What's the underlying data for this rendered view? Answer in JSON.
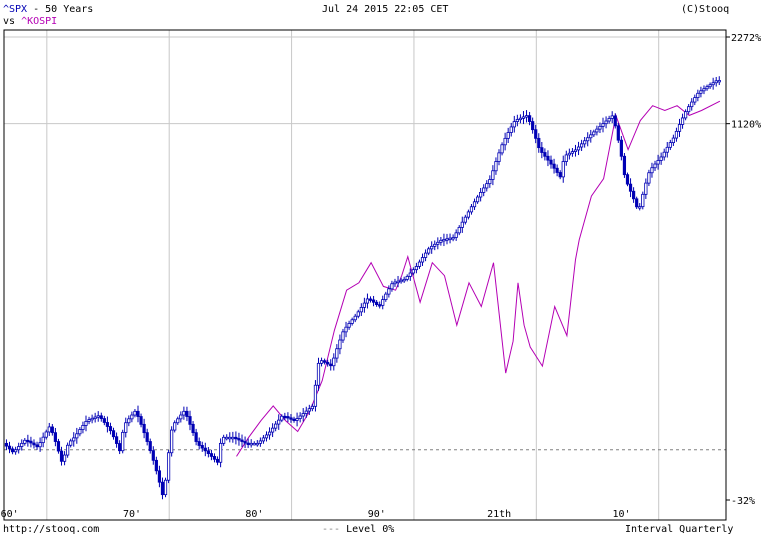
{
  "header": {
    "primary_symbol": "^SPX",
    "primary_suffix": " - 50 Years",
    "vs_label": "vs ",
    "compare_symbol": "^KOSPI",
    "timestamp": "Jul 24 2015 22:05 CET",
    "copyright": "(C)Stooq"
  },
  "footer": {
    "url": "http://stooq.com",
    "level_label": "Level 0%",
    "interval_label": "Interval Quarterly"
  },
  "colors": {
    "primary_series": "#0000b4",
    "compare_series": "#b400b4",
    "grid": "#c8c8c8",
    "frame": "#000000",
    "level_line": "#808080"
  },
  "chart_data": {
    "type": "line",
    "title": "^SPX - 50 Years vs ^KOSPI",
    "scale": "log",
    "x_range": [
      1957,
      2016
    ],
    "y_tick_labels": [
      "2272%",
      "1120%",
      "-32%"
    ],
    "x_tick_labels": [
      "60'",
      "70'",
      "80'",
      "90'",
      "21th",
      "10'"
    ],
    "grid": true,
    "reference_line": {
      "label": "Level 0%",
      "value": 0
    },
    "series": [
      {
        "name": "^SPX",
        "style": "candlestick",
        "x": [
          1957.2,
          1958,
          1959,
          1960,
          1961,
          1962,
          1962.5,
          1963,
          1964,
          1965,
          1966,
          1966.8,
          1967,
          1968,
          1969,
          1970.3,
          1971,
          1972,
          1973,
          1974.8,
          1975,
          1976,
          1977,
          1978,
          1979,
          1980,
          1981,
          1982.5,
          1983,
          1984,
          1985,
          1986,
          1987,
          1987.9,
          1989,
          1990,
          1991,
          1992,
          1993,
          1994,
          1995,
          1996,
          1997,
          1998,
          1999,
          2000,
          2001,
          2002.8,
          2003,
          2004,
          2005,
          2006,
          2007,
          2008,
          2009.1,
          2010,
          2011,
          2012,
          2013,
          2014,
          2015.5
        ],
        "values": [
          5,
          -2,
          8,
          2,
          20,
          -10,
          5,
          10,
          25,
          30,
          15,
          -3,
          20,
          35,
          5,
          -32,
          20,
          35,
          5,
          -10,
          10,
          10,
          5,
          5,
          15,
          30,
          25,
          40,
          100,
          90,
          150,
          180,
          220,
          200,
          260,
          270,
          310,
          370,
          400,
          410,
          500,
          600,
          700,
          950,
          1150,
          1200,
          900,
          700,
          850,
          900,
          1000,
          1100,
          1200,
          700,
          520,
          750,
          850,
          1000,
          1250,
          1450,
          1600
        ]
      },
      {
        "name": "^KOSPI",
        "style": "line",
        "x": [
          1976,
          1977,
          1978,
          1979,
          1980,
          1981,
          1982,
          1983,
          1984,
          1985,
          1986,
          1987,
          1988,
          1989,
          1989.5,
          1990,
          1991,
          1992,
          1993,
          1994,
          1995,
          1996,
          1997,
          1998,
          1998.6,
          1999,
          1999.5,
          2000,
          2001,
          2002,
          2003,
          2003.7,
          2004,
          2005,
          2006,
          2007,
          2008,
          2009,
          2010,
          2011,
          2012,
          2013,
          2014,
          2015.5
        ],
        "values": [
          -5,
          10,
          25,
          40,
          25,
          15,
          35,
          70,
          150,
          240,
          260,
          320,
          250,
          240,
          280,
          340,
          210,
          320,
          280,
          160,
          260,
          200,
          320,
          80,
          130,
          260,
          160,
          120,
          90,
          200,
          140,
          330,
          400,
          600,
          700,
          1200,
          900,
          1150,
          1300,
          1250,
          1300,
          1200,
          1250,
          1350
        ]
      }
    ]
  }
}
